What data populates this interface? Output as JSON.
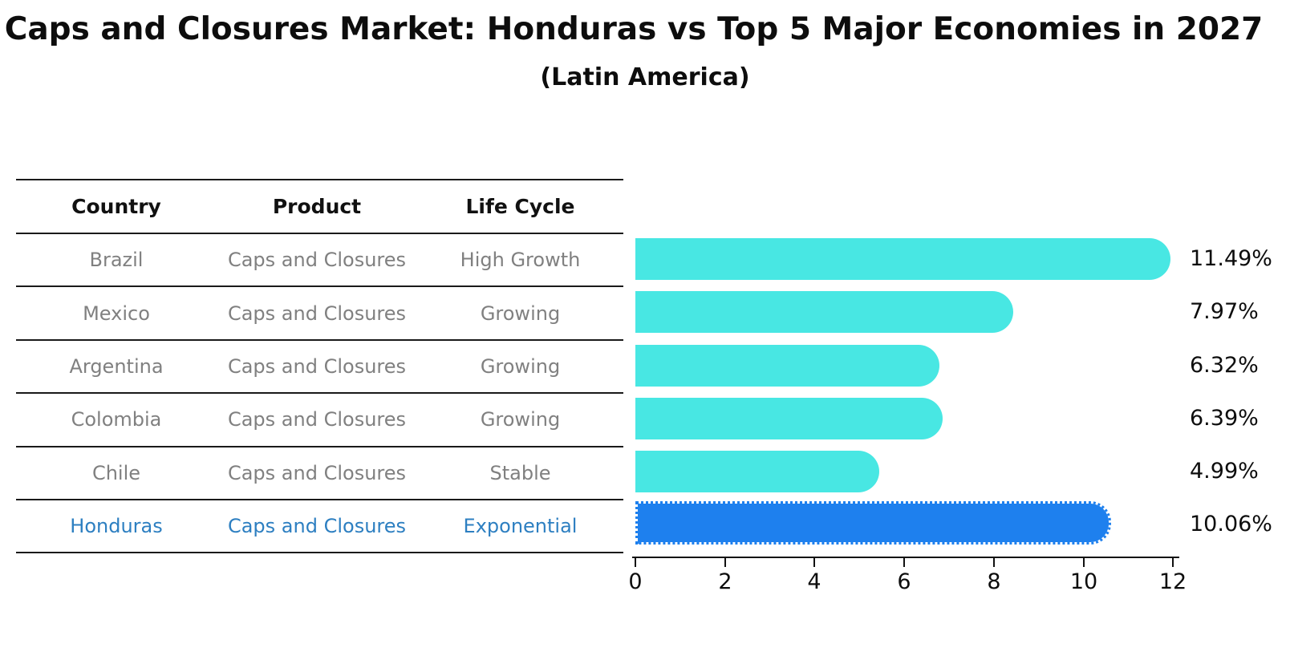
{
  "title": "Caps and Closures Market: Honduras vs Top 5 Major Economies in 2027",
  "subtitle": "(Latin America)",
  "colors": {
    "bar_default": "#48E7E3",
    "bar_highlight": "#1E80EE",
    "row_text": "#808080",
    "highlight_text": "#2d7fc1",
    "heading_text": "#111111",
    "axis_text": "#0d0d0d"
  },
  "table": {
    "headers": [
      "Country",
      "Product",
      "Life Cycle"
    ],
    "rows": [
      {
        "country": "Brazil",
        "product": "Caps and Closures",
        "life_cycle": "High Growth"
      },
      {
        "country": "Mexico",
        "product": "Caps and Closures",
        "life_cycle": "Growing"
      },
      {
        "country": "Argentina",
        "product": "Caps and Closures",
        "life_cycle": "Growing"
      },
      {
        "country": "Colombia",
        "product": "Caps and Closures",
        "life_cycle": "Growing"
      },
      {
        "country": "Chile",
        "product": "Caps and Closures",
        "life_cycle": "Stable"
      },
      {
        "country": "Honduras",
        "product": "Caps and Closures",
        "life_cycle": "Exponential"
      }
    ]
  },
  "chart_data": {
    "type": "bar",
    "orientation": "horizontal",
    "title": "Caps and Closures Market: Honduras vs Top 5 Major Economies in 2027 (Latin America)",
    "categories": [
      "Brazil",
      "Mexico",
      "Argentina",
      "Colombia",
      "Chile",
      "Honduras"
    ],
    "values": [
      11.49,
      7.97,
      6.32,
      6.39,
      4.99,
      10.06
    ],
    "value_labels": [
      "11.49%",
      "7.97%",
      "6.32%",
      "6.39%",
      "4.99%",
      "10.06%"
    ],
    "unit": "percent",
    "xlim": [
      0,
      12
    ],
    "xticks": [
      0,
      2,
      4,
      6,
      8,
      10,
      12
    ],
    "xtick_labels": [
      "0",
      "2",
      "4",
      "6",
      "8",
      "10",
      "12"
    ],
    "highlight_index": 5,
    "legend": "none",
    "grid": "off"
  }
}
